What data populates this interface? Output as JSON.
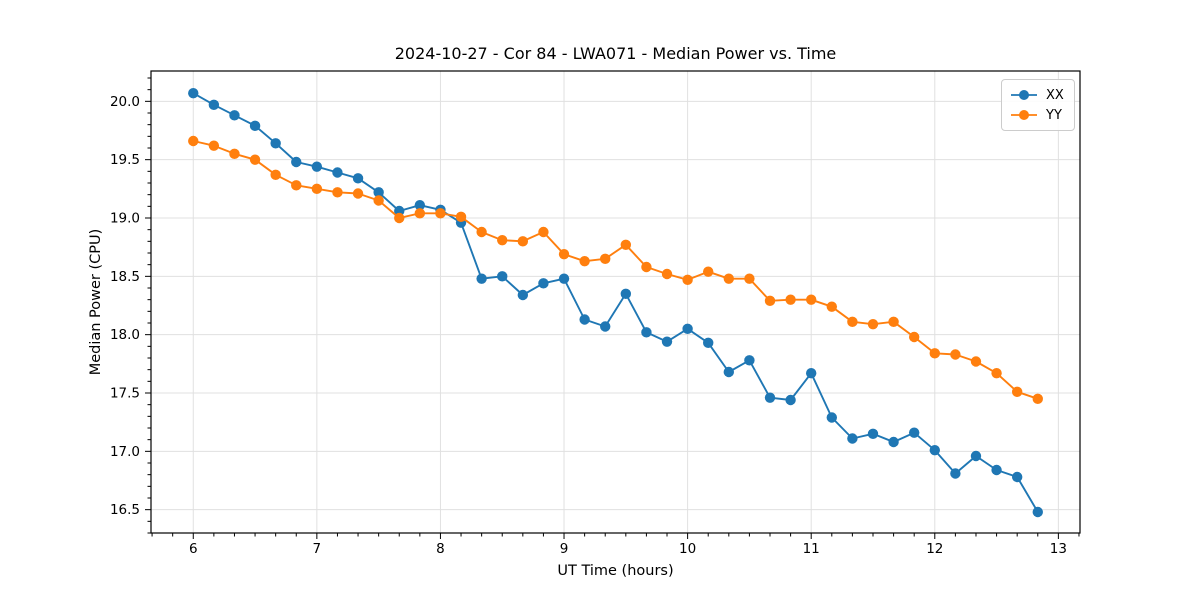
{
  "chart_data": {
    "type": "line",
    "title": "2024-10-27 - Cor 84 - LWA071 - Median Power vs. Time",
    "xlabel": "UT Time (hours)",
    "ylabel": "Median Power (CPU)",
    "xlim": [
      5.658,
      13.175
    ],
    "ylim": [
      16.3,
      20.26
    ],
    "xticks": [
      6,
      7,
      8,
      9,
      10,
      11,
      12,
      13
    ],
    "xtick_labels": [
      "6",
      "7",
      "8",
      "9",
      "10",
      "11",
      "12",
      "13"
    ],
    "yticks": [
      16.5,
      17.0,
      17.5,
      18.0,
      18.5,
      19.0,
      19.5,
      20.0
    ],
    "ytick_labels": [
      "16.5",
      "17.0",
      "17.5",
      "18.0",
      "18.5",
      "19.0",
      "19.5",
      "20.0"
    ],
    "x_minor_step": 0.1666667,
    "y_minor_step": 0.1,
    "grid": true,
    "grid_color": "#e0e0e0",
    "legend_position": "upper right",
    "x": [
      6.0,
      6.1667,
      6.3333,
      6.5,
      6.6667,
      6.8333,
      7.0,
      7.1667,
      7.3333,
      7.5,
      7.6667,
      7.8333,
      8.0,
      8.1667,
      8.3333,
      8.5,
      8.6667,
      8.8333,
      9.0,
      9.1667,
      9.3333,
      9.5,
      9.6667,
      9.8333,
      10.0,
      10.1667,
      10.3333,
      10.5,
      10.6667,
      10.8333,
      11.0,
      11.1667,
      11.3333,
      11.5,
      11.6667,
      11.8333,
      12.0,
      12.1667,
      12.3333,
      12.5,
      12.6667,
      12.8333
    ],
    "series": [
      {
        "name": "XX",
        "color": "#1f77b4",
        "values": [
          20.07,
          19.97,
          19.88,
          19.79,
          19.64,
          19.48,
          19.44,
          19.39,
          19.34,
          19.22,
          19.06,
          19.11,
          19.07,
          18.96,
          18.48,
          18.5,
          18.34,
          18.44,
          18.48,
          18.13,
          18.07,
          18.35,
          18.02,
          17.94,
          18.05,
          17.93,
          17.68,
          17.78,
          17.46,
          17.44,
          17.67,
          17.29,
          17.11,
          17.15,
          17.08,
          17.16,
          17.01,
          16.81,
          16.96,
          16.84,
          16.78,
          16.48
        ]
      },
      {
        "name": "YY",
        "color": "#ff7f0e",
        "values": [
          19.66,
          19.62,
          19.55,
          19.5,
          19.37,
          19.28,
          19.25,
          19.22,
          19.21,
          19.15,
          19.0,
          19.04,
          19.04,
          19.01,
          18.88,
          18.81,
          18.8,
          18.88,
          18.69,
          18.63,
          18.65,
          18.77,
          18.58,
          18.52,
          18.47,
          18.54,
          18.48,
          18.48,
          18.29,
          18.3,
          18.3,
          18.24,
          18.11,
          18.09,
          18.11,
          17.98,
          17.84,
          17.83,
          17.77,
          17.67,
          17.51,
          17.45
        ]
      }
    ]
  }
}
